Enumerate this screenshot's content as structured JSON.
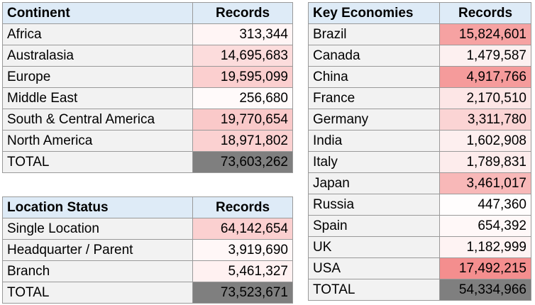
{
  "continent_table": {
    "header": {
      "label": "Continent",
      "value": "Records"
    },
    "rows": [
      {
        "label": "Africa",
        "value": "313,344",
        "color": "#fff5f5"
      },
      {
        "label": "Australasia",
        "value": "14,695,683",
        "color": "#fcdcdc"
      },
      {
        "label": "Europe",
        "value": "19,595,099",
        "color": "#fbcfcf"
      },
      {
        "label": "Middle East",
        "value": "256,680",
        "color": "#fffafa"
      },
      {
        "label": "South & Central America",
        "value": "19,770,654",
        "color": "#fac9c9"
      },
      {
        "label": "North America",
        "value": "18,971,802",
        "color": "#fbd1d1"
      }
    ],
    "total": {
      "label": "TOTAL",
      "value": "73,603,262"
    }
  },
  "location_table": {
    "header": {
      "label": "Location Status",
      "value": "Records"
    },
    "rows": [
      {
        "label": "Single Location",
        "value": "64,142,654",
        "color": "#fbd0d0"
      },
      {
        "label": "Headquarter / Parent",
        "value": "3,919,690",
        "color": "#fff7f7"
      },
      {
        "label": "Branch",
        "value": "5,461,327",
        "color": "#fff1f1"
      }
    ],
    "total": {
      "label": "TOTAL",
      "value": "73,523,671"
    }
  },
  "economies_table": {
    "header": {
      "label": "Key Economies",
      "value": "Records"
    },
    "rows": [
      {
        "label": "Brazil",
        "value": "15,824,601",
        "color": "#f6a2a2"
      },
      {
        "label": "Canada",
        "value": "1,479,587",
        "color": "#fdf0f0"
      },
      {
        "label": "China",
        "value": "4,917,766",
        "color": "#f59b9b"
      },
      {
        "label": "France",
        "value": "2,170,510",
        "color": "#fde6e6"
      },
      {
        "label": "Germany",
        "value": "3,311,780",
        "color": "#fbd4d4"
      },
      {
        "label": "India",
        "value": "1,602,908",
        "color": "#fdefef"
      },
      {
        "label": "Italy",
        "value": "1,789,831",
        "color": "#fdecec"
      },
      {
        "label": "Japan",
        "value": "3,461,017",
        "color": "#f8b8b8"
      },
      {
        "label": "Russia",
        "value": "447,360",
        "color": "#fffdfd"
      },
      {
        "label": "Spain",
        "value": "654,392",
        "color": "#fff8f8"
      },
      {
        "label": "UK",
        "value": "1,182,999",
        "color": "#fef3f3"
      },
      {
        "label": "USA",
        "value": "17,492,215",
        "color": "#f48e8e"
      }
    ],
    "total": {
      "label": "TOTAL",
      "value": "54,334,966"
    }
  }
}
